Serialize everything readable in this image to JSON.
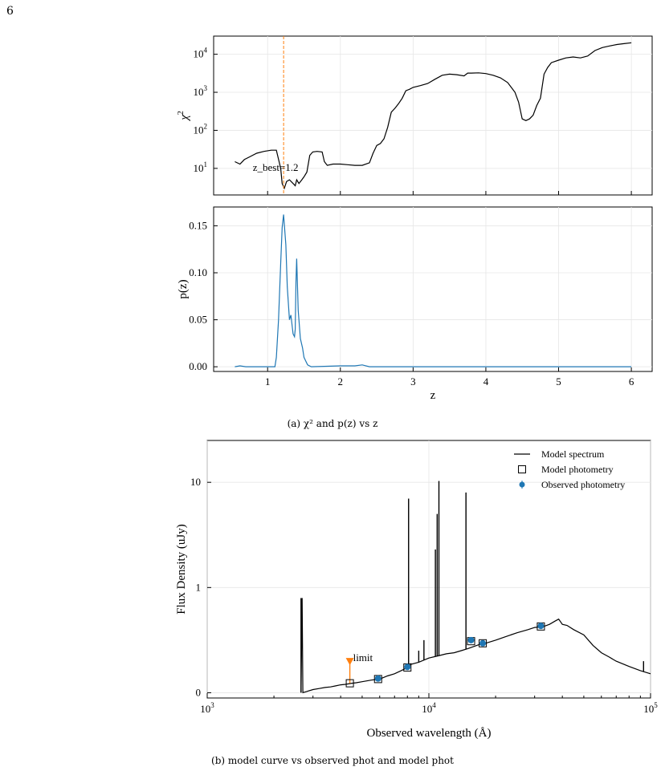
{
  "page_number": "6",
  "chart_data": [
    {
      "type": "line",
      "panel": "chi2",
      "xlabel": "",
      "ylabel": "χ",
      "ylabel_sup": "2",
      "yscale": "log",
      "xlim": [
        0.5,
        6.0
      ],
      "ylim": [
        2.0,
        30000
      ],
      "grid": true,
      "yticks": [
        {
          "value": 10,
          "base": "10",
          "exp": "1"
        },
        {
          "value": 100,
          "base": "10",
          "exp": "2"
        },
        {
          "value": 1000,
          "base": "10",
          "exp": "3"
        },
        {
          "value": 10000,
          "base": "10",
          "exp": "4"
        }
      ],
      "annotation": {
        "text": "z_best=1.2",
        "x": 1.22,
        "color": "#ff7f0e"
      },
      "series": [
        {
          "color": "#000000",
          "x": [
            0.55,
            0.62,
            0.68,
            0.75,
            0.85,
            0.95,
            1.05,
            1.12,
            1.18,
            1.2,
            1.23,
            1.26,
            1.3,
            1.35,
            1.38,
            1.4,
            1.43,
            1.47,
            1.5,
            1.54,
            1.58,
            1.62,
            1.68,
            1.75,
            1.78,
            1.82,
            1.9,
            2.0,
            2.1,
            2.2,
            2.3,
            2.4,
            2.45,
            2.5,
            2.55,
            2.6,
            2.65,
            2.7,
            2.75,
            2.8,
            2.85,
            2.9,
            2.95,
            3.0,
            3.1,
            3.2,
            3.3,
            3.4,
            3.5,
            3.6,
            3.7,
            3.75,
            3.8,
            3.9,
            4.0,
            4.1,
            4.2,
            4.3,
            4.4,
            4.45,
            4.5,
            4.55,
            4.6,
            4.65,
            4.7,
            4.75,
            4.8,
            4.85,
            4.9,
            5.0,
            5.1,
            5.2,
            5.3,
            5.4,
            5.5,
            5.6,
            5.7,
            5.8,
            5.9,
            6.0
          ],
          "values": [
            15,
            13,
            17,
            20,
            25,
            28,
            30,
            30,
            10,
            4,
            3,
            4.5,
            5,
            4,
            3.5,
            5,
            4,
            5,
            6,
            8,
            22,
            27,
            28,
            27,
            15,
            12,
            13,
            13,
            12.5,
            12,
            12,
            14,
            25,
            40,
            45,
            60,
            120,
            300,
            380,
            500,
            700,
            1100,
            1200,
            1350,
            1500,
            1700,
            2200,
            2800,
            3000,
            2900,
            2700,
            3200,
            3200,
            3250,
            3100,
            2800,
            2400,
            1800,
            1000,
            550,
            200,
            180,
            200,
            250,
            450,
            700,
            3000,
            4500,
            6000,
            7000,
            8000,
            8500,
            8000,
            9000,
            12500,
            15000,
            16500,
            18000,
            19000,
            20000
          ]
        }
      ]
    },
    {
      "type": "line",
      "panel": "pz",
      "xlabel": "z",
      "ylabel": "p(z)",
      "xlim": [
        0.5,
        6.0
      ],
      "ylim": [
        -0.005,
        0.17
      ],
      "grid": true,
      "xticks": [
        1,
        2,
        3,
        4,
        5,
        6
      ],
      "yticks": [
        "0.00",
        "0.05",
        "0.10",
        "0.15"
      ],
      "series": [
        {
          "color": "#1f77b4",
          "x": [
            0.55,
            0.62,
            0.7,
            0.8,
            1.0,
            1.1,
            1.12,
            1.15,
            1.18,
            1.2,
            1.22,
            1.25,
            1.27,
            1.3,
            1.32,
            1.35,
            1.37,
            1.38,
            1.39,
            1.4,
            1.42,
            1.45,
            1.48,
            1.5,
            1.55,
            1.6,
            2.0,
            2.2,
            2.3,
            2.4,
            2.5,
            6.0
          ],
          "values": [
            0,
            0.001,
            0,
            0,
            0,
            0,
            0.01,
            0.05,
            0.11,
            0.148,
            0.162,
            0.13,
            0.085,
            0.05,
            0.055,
            0.035,
            0.032,
            0.04,
            0.09,
            0.115,
            0.06,
            0.03,
            0.02,
            0.01,
            0.002,
            0,
            0.001,
            0.001,
            0.002,
            0,
            0,
            0
          ]
        }
      ]
    },
    {
      "type": "line",
      "panel": "sed",
      "xlabel": "Observed wavelength (Å)",
      "ylabel": "Flux Density (uJy)",
      "xscale": "log",
      "xlim": [
        1000,
        100000
      ],
      "ylim": [
        -0.05,
        25
      ],
      "grid": true,
      "xticks": [
        {
          "value": 1000,
          "base": "10",
          "exp": "3"
        },
        {
          "value": 10000,
          "base": "10",
          "exp": "4"
        },
        {
          "value": 100000,
          "base": "10",
          "exp": "5"
        }
      ],
      "yticks": [
        "0",
        "1",
        "10"
      ],
      "legend": {
        "position": "top-right",
        "entries": [
          "Model spectrum",
          "Model photometry",
          "Observed photometry"
        ]
      },
      "limit_label": "limit",
      "model_spectrum": {
        "color": "#000000",
        "x": [
          2650,
          2680,
          2700,
          2800,
          3000,
          3200,
          3400,
          3600,
          3800,
          4000,
          4200,
          4500,
          4700,
          5000,
          5500,
          6000,
          6500,
          7000,
          7500,
          8000,
          8300,
          9000,
          10000,
          11000,
          12000,
          13000,
          14000,
          15000,
          16000,
          17000,
          18000,
          20000,
          22000,
          25000,
          28000,
          30000,
          33000,
          35000,
          37000,
          38500,
          40000,
          42000,
          45000,
          50000,
          55000,
          60000,
          65000,
          70000,
          80000,
          90000,
          100000
        ],
        "values": [
          0.001,
          0.9,
          0.001,
          0.01,
          0.03,
          0.04,
          0.05,
          0.055,
          0.065,
          0.075,
          0.08,
          0.09,
          0.095,
          0.105,
          0.12,
          0.13,
          0.16,
          0.18,
          0.21,
          0.24,
          0.27,
          0.29,
          0.33,
          0.35,
          0.37,
          0.38,
          0.4,
          0.42,
          0.44,
          0.46,
          0.47,
          0.5,
          0.53,
          0.57,
          0.6,
          0.62,
          0.63,
          0.65,
          0.68,
          0.7,
          0.65,
          0.64,
          0.6,
          0.55,
          0.45,
          0.38,
          0.34,
          0.3,
          0.25,
          0.21,
          0.18
        ]
      },
      "emission_lines": [
        {
          "x": 2650,
          "value": 0.9
        },
        {
          "x": 8100,
          "value": 7.0
        },
        {
          "x": 8300,
          "value": 0.28
        },
        {
          "x": 9000,
          "value": 0.4
        },
        {
          "x": 9500,
          "value": 0.5
        },
        {
          "x": 10700,
          "value": 2.3
        },
        {
          "x": 10900,
          "value": 5.0
        },
        {
          "x": 11100,
          "value": 10.3
        },
        {
          "x": 14700,
          "value": 8.0
        },
        {
          "x": 93000,
          "value": 0.3
        }
      ],
      "model_photometry": [
        {
          "x": 4400,
          "value": 0.09
        },
        {
          "x": 5900,
          "value": 0.13
        },
        {
          "x": 8000,
          "value": 0.24
        },
        {
          "x": 15500,
          "value": 0.49
        },
        {
          "x": 17500,
          "value": 0.47
        },
        {
          "x": 32000,
          "value": 0.63
        }
      ],
      "observed_photometry": [
        {
          "x": 5900,
          "value": 0.135
        },
        {
          "x": 8000,
          "value": 0.245
        },
        {
          "x": 15500,
          "value": 0.5
        },
        {
          "x": 17500,
          "value": 0.47
        },
        {
          "x": 32000,
          "value": 0.635
        }
      ],
      "upper_limit": {
        "x": 4400,
        "value": 0.3,
        "low": 0.09,
        "color": "#ff7f0e"
      }
    }
  ],
  "captions": {
    "a": "(a) χ² and p(z) vs z",
    "b": "(b) model curve vs observed phot and model phot"
  }
}
